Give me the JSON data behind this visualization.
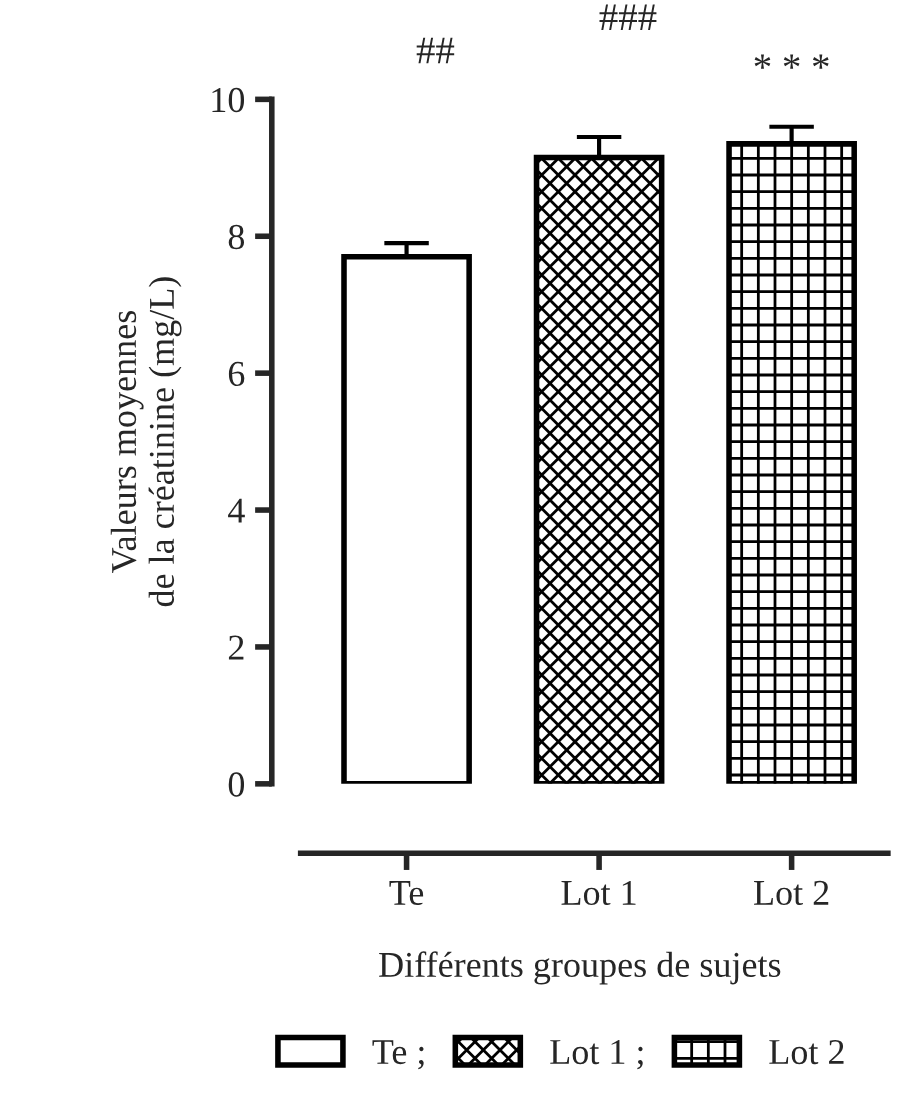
{
  "chart_data": {
    "type": "bar",
    "xlabel": "Différents groupes de sujets",
    "ylabel": "Valeurs moyennes\nde la créatinine (mg/L)",
    "categories": [
      "Te",
      "Lot 1",
      "Lot 2"
    ],
    "series": [
      {
        "name": "Te ;",
        "color": "#ffffff",
        "values": [
          7.7,
          null,
          null
        ],
        "errors": [
          0.2,
          null,
          null
        ]
      },
      {
        "name": "Lot 1 ;",
        "color": "#000000",
        "values": [
          null,
          9.15,
          null
        ],
        "errors": [
          null,
          0.3,
          null
        ]
      },
      {
        "name": "Lot 2",
        "color": "#000000",
        "values": [
          null,
          null,
          9.35
        ],
        "errors": [
          null,
          null,
          0.25
        ]
      }
    ],
    "ylim": [
      0,
      10
    ],
    "yticks": [
      0,
      2,
      4,
      6,
      8,
      10
    ],
    "grid": false,
    "legend": "bottom",
    "annotations": [
      "##",
      "###",
      "* * *"
    ]
  }
}
